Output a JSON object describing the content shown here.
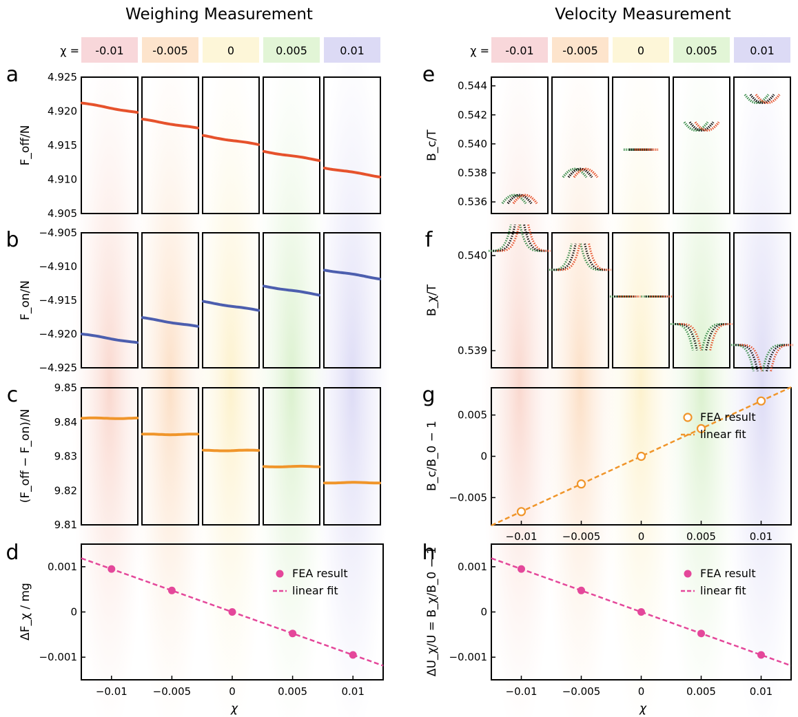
{
  "titles": {
    "left": "Weighing Measurement",
    "right": "Velocity Measurement"
  },
  "chi_label": "χ =",
  "chi_values": [
    "-0.01",
    "-0.005",
    "0",
    "0.005",
    "0.01"
  ],
  "chi_colors": [
    "#f8d7da",
    "#fde4cc",
    "#fdf6d8",
    "#e2f5d6",
    "#dcdaf5"
  ],
  "panel_letters": [
    "a",
    "b",
    "c",
    "d",
    "e",
    "f",
    "g",
    "h"
  ],
  "line_colors": {
    "off": "#e6522c",
    "on": "#4c5eae",
    "diff": "#f0952a",
    "fea": "#e4479a",
    "fea_g": "#f0952a",
    "black": "#111111",
    "green": "#3f8f4f",
    "red": "#e6522c"
  },
  "chart_data": [
    {
      "panel": "a",
      "type": "line",
      "ylabel": "F_off/N",
      "ylim": [
        4.905,
        4.925
      ],
      "yticks": [
        "4.925",
        "4.920",
        "4.915",
        "4.910",
        "4.905"
      ],
      "series": [
        {
          "values_start": [
            4.9212,
            4.9188,
            4.9164,
            4.9141,
            4.9117
          ],
          "values_end": [
            4.9198,
            4.9175,
            4.9151,
            4.9128,
            4.9104
          ]
        }
      ]
    },
    {
      "panel": "b",
      "type": "line",
      "ylabel": "F_on/N",
      "ylim": [
        -4.925,
        -4.905
      ],
      "yticks": [
        "−4.905",
        "−4.910",
        "−4.915",
        "−4.920",
        "−4.925"
      ],
      "series": [
        {
          "values_start": [
            -4.92,
            -4.9176,
            -4.9152,
            -4.9129,
            -4.9105
          ],
          "values_end": [
            -4.9213,
            -4.9189,
            -4.9165,
            -4.9142,
            -4.9118
          ]
        }
      ]
    },
    {
      "panel": "c",
      "type": "line",
      "ylabel": "(F_off − F_on)/N",
      "ylim": [
        9.81,
        9.85
      ],
      "yticks": [
        "9.85",
        "9.84",
        "9.83",
        "9.82",
        "9.81"
      ],
      "series": [
        {
          "values": [
            9.8411,
            9.8364,
            9.8317,
            9.827,
            9.8223
          ]
        }
      ]
    },
    {
      "panel": "d",
      "type": "scatter",
      "ylabel": "ΔF_χ / mg",
      "xlabel": "χ",
      "xlim": [
        -0.0125,
        0.0125
      ],
      "ylim": [
        -0.0015,
        0.0015
      ],
      "xticks": [
        "−0.01",
        "−0.005",
        "0",
        "0.005",
        "0.01"
      ],
      "yticks": [
        "0.001",
        "0",
        "−0.001"
      ],
      "x": [
        -0.01,
        -0.005,
        0,
        0.005,
        0.01
      ],
      "y": [
        0.00095,
        0.000475,
        0,
        -0.000475,
        -0.00095
      ],
      "legend": [
        "FEA result",
        "linear fit"
      ]
    },
    {
      "panel": "e",
      "type": "line",
      "ylabel": "B_c/T",
      "ylim": [
        0.5352,
        0.5446
      ],
      "yticks": [
        "0.544",
        "0.542",
        "0.540",
        "0.538",
        "0.536"
      ],
      "centers": [
        0.5359,
        0.5377,
        0.5396,
        0.5415,
        0.5434
      ]
    },
    {
      "panel": "f",
      "type": "scatter",
      "ylabel": "B_χ/T",
      "ylim": [
        0.53882,
        0.54024
      ],
      "yticks": [
        "0.540",
        "0.539"
      ],
      "levels": [
        0.54005,
        0.53985,
        0.53957,
        0.53928,
        0.53906
      ]
    },
    {
      "panel": "g",
      "type": "scatter",
      "ylabel": "B_c/B_0 − 1",
      "xlim": [
        -0.0125,
        0.0125
      ],
      "ylim": [
        -0.0083,
        0.0083
      ],
      "xticks": [
        "−0.01",
        "−0.005",
        "0",
        "0.005",
        "0.01"
      ],
      "yticks": [
        "0.005",
        "0",
        "−0.005"
      ],
      "x": [
        -0.01,
        -0.005,
        0,
        0.005,
        0.01
      ],
      "y": [
        -0.0067,
        -0.00335,
        0,
        0.00335,
        0.0067
      ],
      "legend": [
        "FEA result",
        "linear fit"
      ]
    },
    {
      "panel": "h",
      "type": "scatter",
      "ylabel": "ΔU_χ/U = B_χ/B_0 − 1",
      "xlabel": "χ",
      "xlim": [
        -0.0125,
        0.0125
      ],
      "ylim": [
        -0.0015,
        0.0015
      ],
      "xticks": [
        "−0.01",
        "−0.005",
        "0",
        "0.005",
        "0.01"
      ],
      "yticks": [
        "0.001",
        "0",
        "−0.001"
      ],
      "x": [
        -0.01,
        -0.005,
        0,
        0.005,
        0.01
      ],
      "y": [
        0.00095,
        0.000475,
        0,
        -0.000475,
        -0.00095
      ],
      "legend": [
        "FEA result",
        "linear fit"
      ]
    }
  ]
}
